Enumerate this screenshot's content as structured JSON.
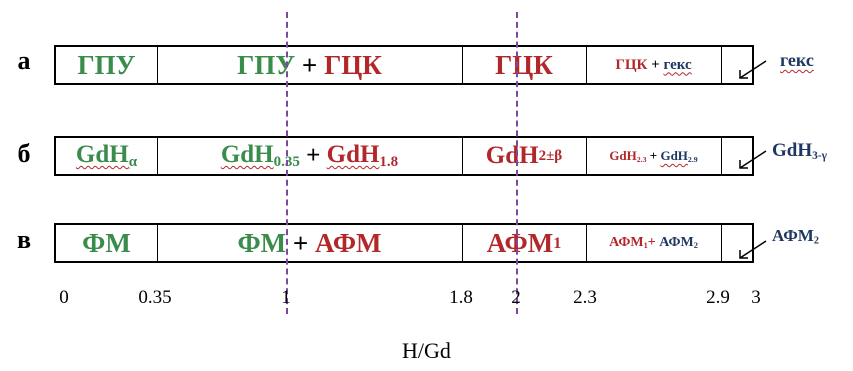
{
  "rows": {
    "a": {
      "label": "а",
      "c1": "ГПУ",
      "c2a": "ГПУ",
      "c2plus": "+",
      "c2b": "ГЦК",
      "c3": "ГЦК",
      "c4a": "ГЦК",
      "c4plus": "+",
      "c4b": "гекс",
      "side": "гекс"
    },
    "b": {
      "label": "б",
      "c1": "GdH",
      "c1sub": "α",
      "c2a": "GdH",
      "c2asub": "0.35",
      "c2plus": "+",
      "c2b": "GdH",
      "c2bsub": "1.8",
      "c3": "GdH",
      "c3sub": "2±β",
      "c4a": "GdH",
      "c4asub": "2.3",
      "c4plus": "+",
      "c4b": "GdH",
      "c4bsub": "2.9",
      "side": "GdH",
      "sidesub": "3-γ"
    },
    "v": {
      "label": "в",
      "c1": "ФМ",
      "c2a": "ФМ",
      "c2plus": "+",
      "c2b": "АФМ",
      "c3": "АФМ",
      "c3sub": "1",
      "c4a": "АФМ",
      "c4asub": "1",
      "c4plus": "+",
      "c4b": "АФМ",
      "c4bsub": "2",
      "side": "АФМ",
      "sidesub": "2"
    }
  },
  "axis": {
    "ticks": [
      {
        "label": "0",
        "value": 0
      },
      {
        "label": "0.35",
        "value": 0.35
      },
      {
        "label": "1",
        "value": 1
      },
      {
        "label": "1.8",
        "value": 1.8
      },
      {
        "label": "2",
        "value": 2
      },
      {
        "label": "2.3",
        "value": 2.3
      },
      {
        "label": "2.9",
        "value": 2.9
      },
      {
        "label": "3",
        "value": 3
      }
    ],
    "title": "H/Gd",
    "dashed_at": [
      1,
      2
    ]
  },
  "colors": {
    "green": "#3a8c4b",
    "red": "#b2282a",
    "navy": "#1f3760",
    "dashed": "#7b4aa0"
  },
  "icons": {
    "arrow": "arrow-down-left-icon"
  }
}
